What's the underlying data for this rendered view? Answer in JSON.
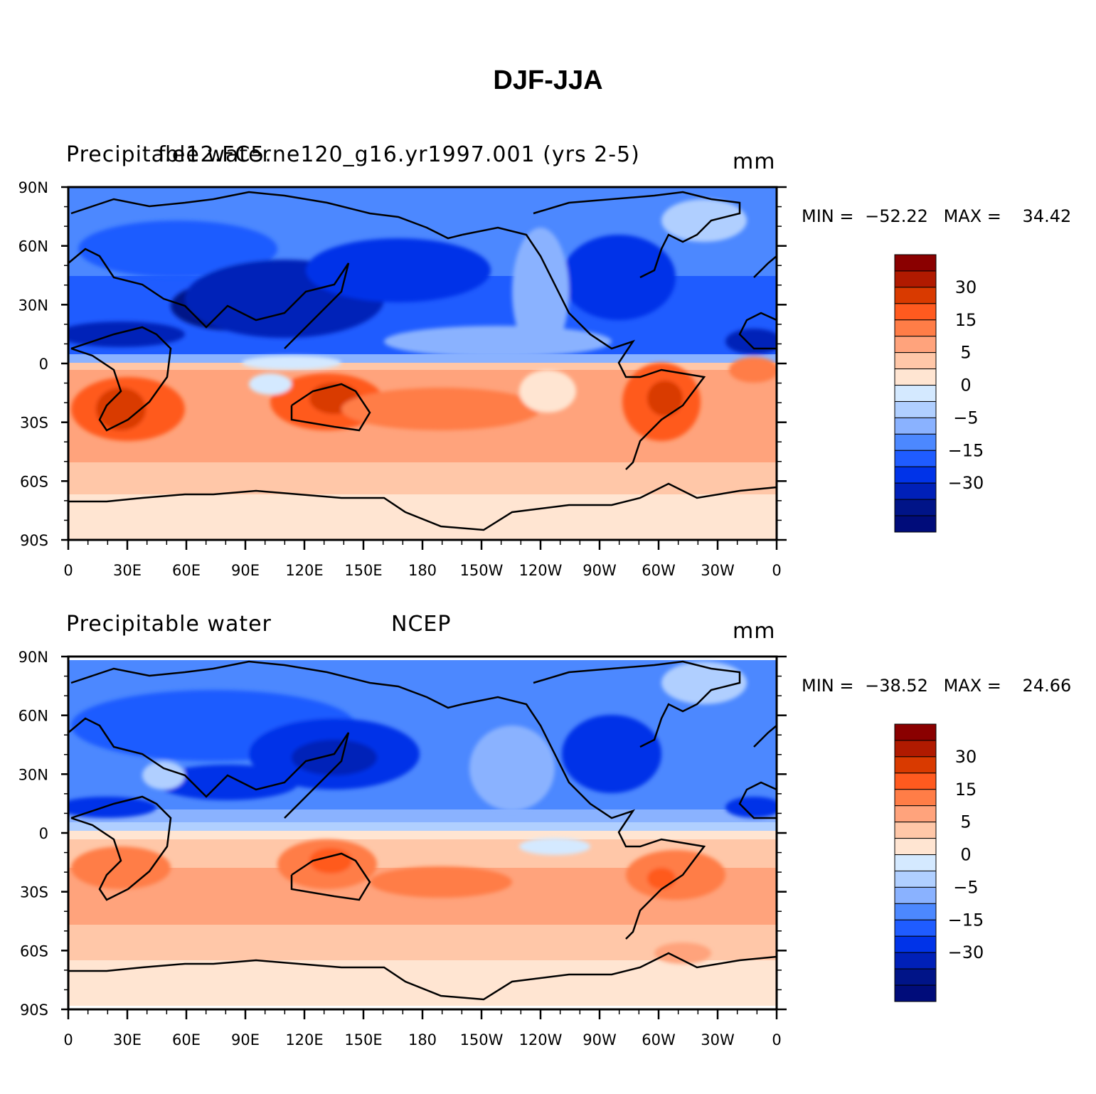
{
  "title": "DJF-JJA",
  "panels": [
    {
      "left_label": "Precipitable water",
      "center_label": "f.e12.FC5.ne120_g16.yr1997.001 (yrs 2-5)",
      "units": "mm",
      "min_label": "MIN =",
      "min_value": "−52.22",
      "max_label": "MAX =",
      "max_value": "34.42"
    },
    {
      "left_label": "Precipitable water",
      "center_label": "NCEP",
      "units": "mm",
      "min_label": "MIN =",
      "min_value": "−38.52",
      "max_label": "MAX =",
      "max_value": "24.66"
    }
  ],
  "axes": {
    "lat_ticks": [
      "90N",
      "60N",
      "30N",
      "0",
      "30S",
      "60S",
      "90S"
    ],
    "lon_ticks": [
      "0",
      "30E",
      "60E",
      "90E",
      "120E",
      "150E",
      "180",
      "150W",
      "120W",
      "90W",
      "60W",
      "30W",
      "0"
    ]
  },
  "colorbar": {
    "colors": [
      "#8a0000",
      "#b01a00",
      "#d93a00",
      "#ff5a1f",
      "#ff7d47",
      "#ffa37c",
      "#ffc7a8",
      "#ffe5d2",
      "#d4e9ff",
      "#b0cfff",
      "#8ab2ff",
      "#4c88ff",
      "#1f5cff",
      "#0033e8",
      "#0020b8",
      "#001488",
      "#000c7a"
    ],
    "labels": [
      "30",
      "15",
      "5",
      "0",
      "−5",
      "−15",
      "−30"
    ]
  },
  "chart_data": {
    "type": "heatmap",
    "projection": "cylindrical equidistant, centered at 180",
    "variable": "Precipitable water",
    "units": "mm",
    "lon_range": [
      0,
      360
    ],
    "lat_range": [
      -90,
      90
    ],
    "colorbar_levels": [
      -30,
      -15,
      -5,
      0,
      5,
      15,
      30
    ],
    "maps": [
      {
        "center_label": "f.e12.FC5.ne120_g16.yr1997.001 (yrs 2-5)",
        "min": -52.22,
        "max": 34.42
      },
      {
        "center_label": "NCEP",
        "min": -38.52,
        "max": 24.66
      }
    ]
  }
}
